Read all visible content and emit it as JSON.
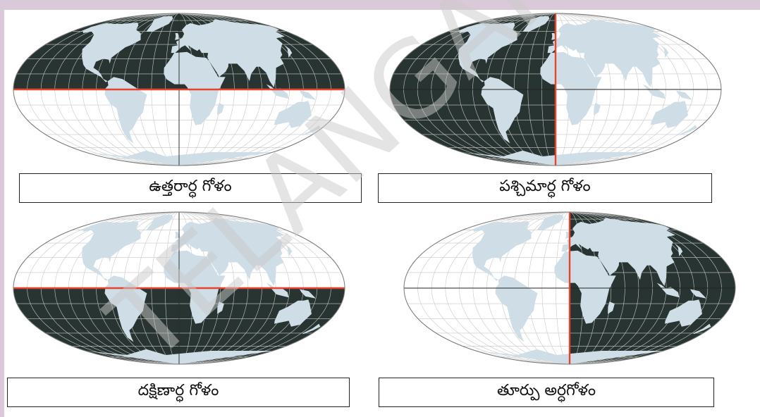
{
  "colors": {
    "land": "#cfdde6",
    "dark_ocean": "#283431",
    "light_ocean": "#ffffff",
    "grid_light": "#c8c8c8",
    "grid_dark": "#55605d",
    "divider": "#e8432e",
    "frame": "#dac9d8"
  },
  "panels": [
    {
      "key": "northern",
      "label": "ఉత్తరార్ధ గోళం",
      "shaded": "north"
    },
    {
      "key": "western",
      "label": "పశ్చిమార్ధ గోళం",
      "shaded": "west"
    },
    {
      "key": "southern",
      "label": "దక్షిణార్ధ గోళం",
      "shaded": "south"
    },
    {
      "key": "eastern",
      "label": "తూర్పు అర్ధగోళం",
      "shaded": "east"
    }
  ],
  "watermark_text": "TELANGANA"
}
